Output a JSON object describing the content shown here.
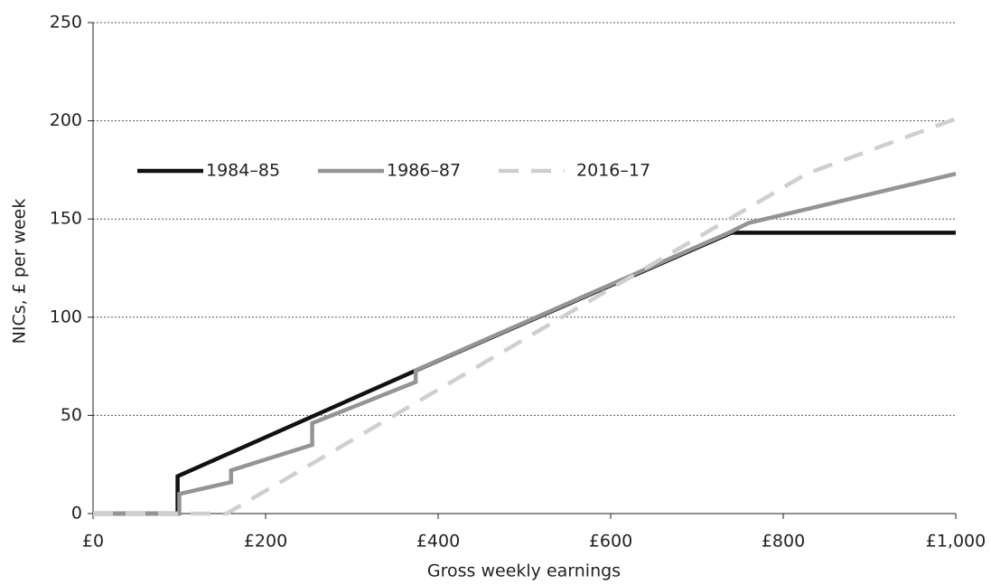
{
  "chart_data": {
    "type": "line",
    "xlabel": "Gross weekly earnings",
    "ylabel": "NICs, £ per week",
    "xlim": [
      0,
      1000
    ],
    "ylim": [
      0,
      250
    ],
    "xticks": [
      {
        "value": 0,
        "label": "£0"
      },
      {
        "value": 200,
        "label": "£200"
      },
      {
        "value": 400,
        "label": "£400"
      },
      {
        "value": 600,
        "label": "£600"
      },
      {
        "value": 800,
        "label": "£800"
      },
      {
        "value": 1000,
        "label": "£1,000"
      }
    ],
    "yticks": [
      0,
      50,
      100,
      150,
      200,
      250
    ],
    "grid": true,
    "legend": "upper left",
    "series": [
      {
        "name": "1984–85",
        "color": "#111111",
        "dashed": false,
        "x": [
          0,
          98,
          98,
          375,
          740,
          1000
        ],
        "values": [
          0,
          0,
          19,
          73,
          143,
          143
        ]
      },
      {
        "name": "1986–87",
        "color": "#949494",
        "dashed": false,
        "x": [
          0,
          100,
          100,
          160,
          160,
          254,
          254,
          374,
          374,
          737,
          760,
          1000
        ],
        "values": [
          0,
          0,
          10,
          16,
          22,
          35,
          46,
          67,
          73,
          143,
          148,
          173
        ]
      },
      {
        "name": "2016–17",
        "color": "#cfcfcf",
        "dashed": true,
        "x": [
          0,
          155,
          827,
          1000
        ],
        "values": [
          0,
          0,
          173,
          201
        ]
      }
    ]
  }
}
